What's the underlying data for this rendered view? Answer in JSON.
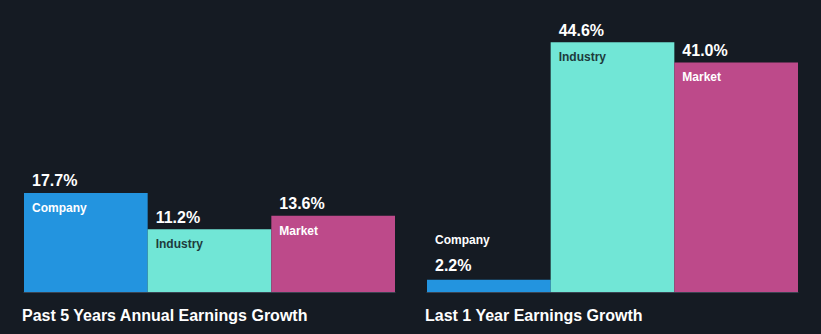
{
  "chart_data": [
    {
      "type": "bar",
      "title": "Past 5 Years Annual Earnings Growth",
      "categories": [
        "Company",
        "Industry",
        "Market"
      ],
      "values": [
        17.7,
        11.2,
        13.6
      ],
      "value_labels": [
        "17.7%",
        "11.2%",
        "13.6%"
      ],
      "colors": [
        "#2394df",
        "#71e6d6",
        "#bd4a8a"
      ],
      "ylim": [
        0,
        50
      ],
      "data_labels": true,
      "tick_labels": false,
      "grid": false
    },
    {
      "type": "bar",
      "title": "Last 1 Year Earnings Growth",
      "categories": [
        "Company",
        "Industry",
        "Market"
      ],
      "values": [
        2.2,
        44.6,
        41.0
      ],
      "value_labels": [
        "2.2%",
        "44.6%",
        "41.0%"
      ],
      "colors": [
        "#2394df",
        "#71e6d6",
        "#bd4a8a"
      ],
      "ylim": [
        0,
        50
      ],
      "data_labels": true,
      "tick_labels": false,
      "grid": false
    }
  ]
}
